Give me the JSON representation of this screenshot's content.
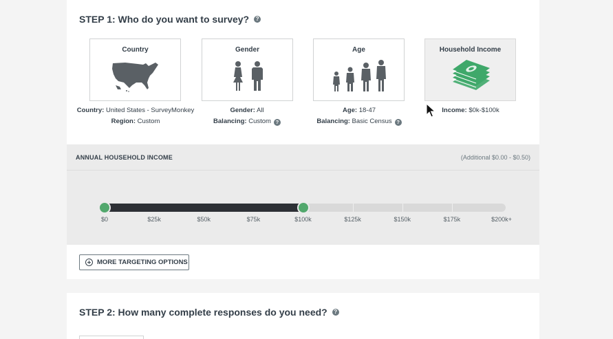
{
  "step1": {
    "title": "STEP 1: Who do you want to survey?",
    "help": "?"
  },
  "tiles": [
    {
      "label": "Country",
      "icon": "usa-map-icon"
    },
    {
      "label": "Gender",
      "icon": "gender-people-icon"
    },
    {
      "label": "Age",
      "icon": "age-people-icon"
    },
    {
      "label": "Household Income",
      "icon": "money-stack-icon",
      "selected": true
    }
  ],
  "summaries": {
    "country": {
      "k1": "Country:",
      "v1": "United States - SurveyMonkey",
      "k2": "Region:",
      "v2": "Custom"
    },
    "gender": {
      "k1": "Gender:",
      "v1": "All",
      "k2": "Balancing:",
      "v2": "Custom"
    },
    "age": {
      "k1": "Age:",
      "v1": "18-47",
      "k2": "Balancing:",
      "v2": "Basic Census"
    },
    "income": {
      "k1": "Income:",
      "v1": "$0k-$100k"
    }
  },
  "income_panel": {
    "title": "ANNUAL HOUSEHOLD INCOME",
    "additional": "(Additional $0.00 - $0.50)",
    "ticks": [
      "$0",
      "$25k",
      "$50k",
      "$75k",
      "$100k",
      "$125k",
      "$150k",
      "$175k",
      "$200k+"
    ],
    "range_low_index": 0,
    "range_high_index": 4
  },
  "more_targeting": {
    "label": "MORE TARGETING OPTIONS"
  },
  "step2": {
    "title": "STEP 2: How many complete responses do you need?",
    "help": "?"
  },
  "colors": {
    "accent_green": "#52a86d",
    "track_fill": "#2d3035",
    "text": "#333e48",
    "icon_gray": "#5a6065"
  }
}
